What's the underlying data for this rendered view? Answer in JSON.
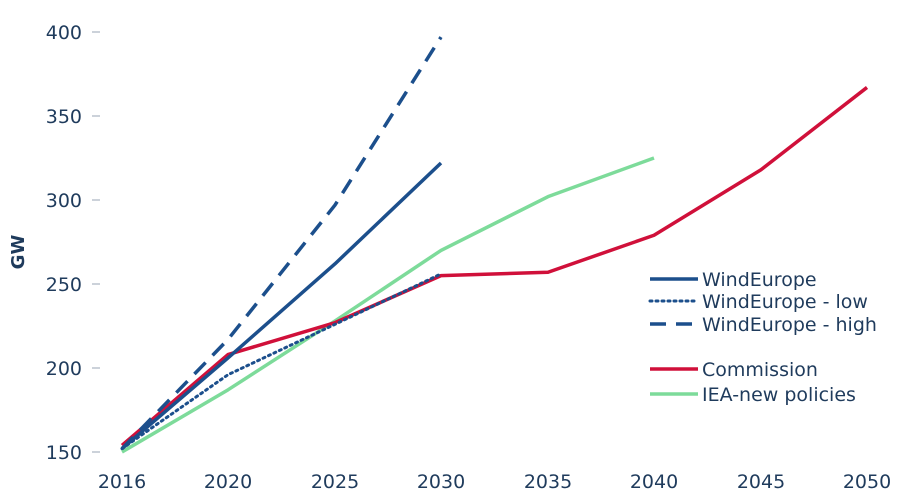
{
  "chart_data": {
    "type": "line",
    "title": "",
    "xlabel": "",
    "ylabel": "GW",
    "x_ticks": [
      "2016",
      "2020",
      "2025",
      "2030",
      "2035",
      "2040",
      "2045",
      "2050"
    ],
    "y_ticks": [
      "150",
      "200",
      "250",
      "300",
      "350",
      "400"
    ],
    "ylim": [
      150,
      400
    ],
    "grid": false,
    "legend_position": "right",
    "series": [
      {
        "name": "WindEurope",
        "color": "#1c4f8c",
        "dash": "solid",
        "x": [
          "2016",
          "2020",
          "2025",
          "2030"
        ],
        "y": [
          152,
          206,
          262,
          322
        ]
      },
      {
        "name": "WindEurope - low",
        "color": "#1c4f8c",
        "dash": "dotted",
        "x": [
          "2016",
          "2020",
          "2025",
          "2030"
        ],
        "y": [
          152,
          196,
          226,
          256
        ]
      },
      {
        "name": "WindEurope - high",
        "color": "#1c4f8c",
        "dash": "dashed",
        "x": [
          "2016",
          "2020",
          "2025",
          "2030"
        ],
        "y": [
          152,
          217,
          297,
          397
        ]
      },
      {
        "name": "Commission",
        "color": "#d0103a",
        "dash": "solid",
        "x": [
          "2016",
          "2020",
          "2025",
          "2030",
          "2035",
          "2040",
          "2045",
          "2050"
        ],
        "y": [
          154,
          208,
          227,
          255,
          257,
          279,
          318,
          367
        ]
      },
      {
        "name": "IEA-new policies",
        "color": "#7ddb9a",
        "dash": "solid",
        "x": [
          "2016",
          "2020",
          "2025",
          "2030",
          "2035",
          "2040"
        ],
        "y": [
          150,
          187,
          228,
          270,
          302,
          325
        ]
      }
    ]
  }
}
